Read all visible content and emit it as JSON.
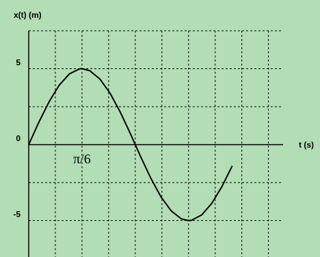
{
  "chart_data": {
    "type": "line",
    "ylabel": "x(t) (m)",
    "xlabel": "t (s)",
    "x": [
      0,
      0.1,
      0.2,
      0.3,
      0.4,
      0.5,
      0.5236,
      0.6,
      0.7,
      0.8,
      0.9,
      1.0,
      1.1,
      1.2,
      1.3,
      1.4,
      1.5,
      1.5708,
      1.6,
      1.7,
      1.8,
      1.9,
      2.0
    ],
    "series": [
      {
        "name": null,
        "color": "#000000",
        "values": [
          0,
          1.48,
          2.82,
          3.92,
          4.66,
          4.99,
          5,
          4.87,
          4.32,
          3.38,
          2.14,
          0.71,
          -0.79,
          -2.21,
          -3.44,
          -4.36,
          -4.89,
          -5,
          -4.98,
          -4.63,
          -3.86,
          -2.75,
          -1.4
        ]
      }
    ],
    "xlim": [
      0,
      2.5
    ],
    "ylim": [
      -7.4,
      7.5
    ],
    "xticks": [
      {
        "value": 0.2618,
        "label": null
      },
      {
        "value": 0.5236,
        "label": "π/6"
      },
      {
        "value": 0.7854,
        "label": null
      },
      {
        "value": 1.0472,
        "label": null
      },
      {
        "value": 1.309,
        "label": null
      },
      {
        "value": 1.5708,
        "label": null
      },
      {
        "value": 1.8326,
        "label": null
      },
      {
        "value": 2.0944,
        "label": null
      },
      {
        "value": 2.3562,
        "label": null
      }
    ],
    "yticks": [
      {
        "value": 7.5,
        "label": null
      },
      5,
      {
        "value": 2.5,
        "label": null
      },
      0,
      {
        "value": -2.5,
        "label": null
      },
      -5
    ],
    "grid": true
  }
}
